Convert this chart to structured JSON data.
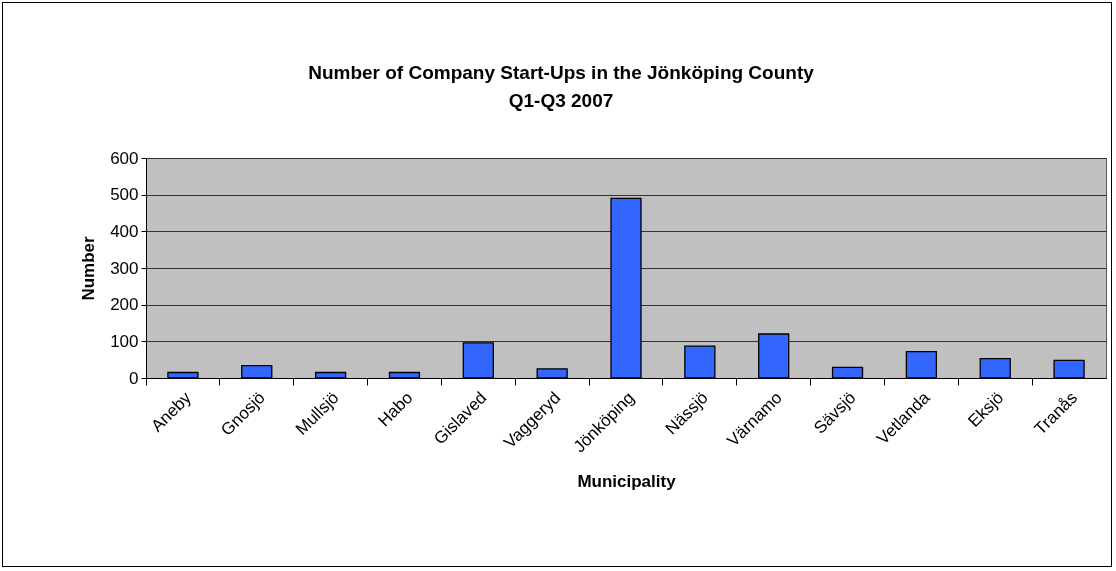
{
  "chart_data": {
    "type": "bar",
    "title": "Number of Company Start-Ups in the Jönköping County\nQ1-Q3 2007",
    "xlabel": "Municipality",
    "ylabel": "Number",
    "categories": [
      "Aneby",
      "Gnosjö",
      "Mullsjö",
      "Habo",
      "Gislaved",
      "Vaggeryd",
      "Jönköping",
      "Nässjö",
      "Värnamo",
      "Sävsjö",
      "Vetlanda",
      "Eksjö",
      "Tranås"
    ],
    "values": [
      15,
      34,
      15,
      15,
      96,
      25,
      490,
      87,
      120,
      29,
      72,
      53,
      48
    ],
    "color": "#3366ff",
    "ylim": [
      0,
      600
    ],
    "yticks": [
      0,
      100,
      200,
      300,
      400,
      500,
      600
    ],
    "grid": "y"
  }
}
